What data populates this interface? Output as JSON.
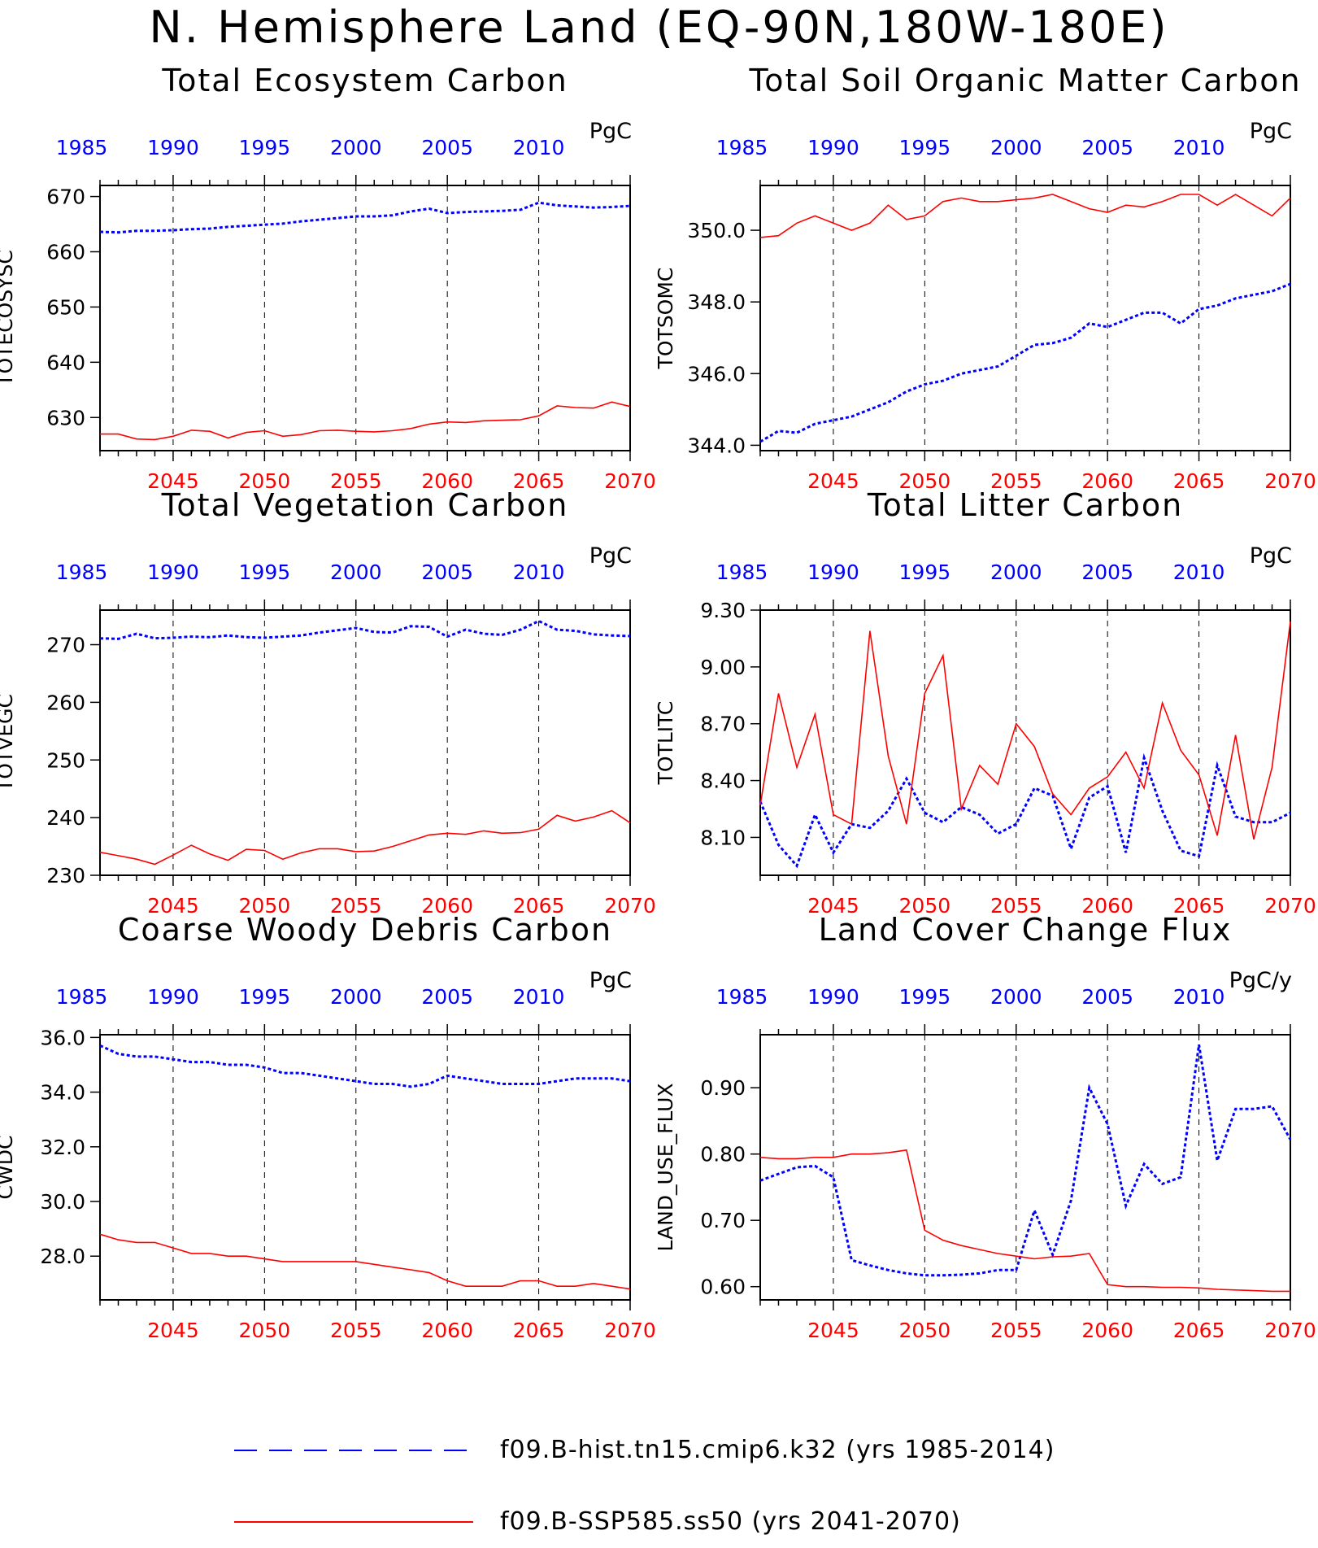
{
  "title": "N. Hemisphere Land (EQ-90N,180W-180E)",
  "colors": {
    "hist": "#0000ff",
    "ssp": "#ff0000",
    "axis": "#000000"
  },
  "legend": [
    {
      "label": "f09.B-hist.tn15.cmip6.k32 (yrs 1985-2014)",
      "color": "#0000ff",
      "style": "dashed"
    },
    {
      "label": "f09.B-SSP585.ss50 (yrs 2041-2070)",
      "color": "#ff0000",
      "style": "solid"
    }
  ],
  "chart_data": [
    {
      "type": "line",
      "title": "Total Ecosystem Carbon",
      "ylabel": "TOTECOSYSC",
      "units": "PgC",
      "ylim": [
        624,
        672
      ],
      "yticks": [
        630,
        640,
        650,
        660,
        670
      ],
      "ytick_format": 0,
      "top_xticks": [
        1985,
        1990,
        1995,
        2000,
        2005,
        2010
      ],
      "bottom_xticks": [
        2045,
        2050,
        2055,
        2060,
        2065,
        2070
      ],
      "series": [
        {
          "name": "f09.B-hist.tn15.cmip6.k32",
          "x_start": 1985,
          "values": [
            663.6,
            663.5,
            663.8,
            663.8,
            663.9,
            664.1,
            664.2,
            664.5,
            664.7,
            664.9,
            665.1,
            665.5,
            665.8,
            666.1,
            666.4,
            666.4,
            666.6,
            667.3,
            667.8,
            667.0,
            667.2,
            667.3,
            667.4,
            667.6,
            668.9,
            668.4,
            668.2,
            668.0,
            668.1,
            668.3
          ]
        },
        {
          "name": "f09.B-SSP585.ss50",
          "x_start": 2041,
          "values": [
            627.0,
            627.0,
            626.1,
            626.0,
            626.6,
            627.7,
            627.5,
            626.3,
            627.3,
            627.6,
            626.6,
            626.9,
            627.6,
            627.7,
            627.5,
            627.4,
            627.6,
            628.0,
            628.8,
            629.2,
            629.1,
            629.4,
            629.5,
            629.6,
            630.3,
            632.1,
            631.8,
            631.7,
            632.8,
            632.0
          ]
        }
      ]
    },
    {
      "type": "line",
      "title": "Total Soil Organic Matter Carbon",
      "ylabel": "TOTSOMC",
      "units": "PgC",
      "ylim": [
        343.85,
        351.25
      ],
      "yticks": [
        344.0,
        346.0,
        348.0,
        350.0
      ],
      "ytick_format": 1,
      "top_xticks": [
        1985,
        1990,
        1995,
        2000,
        2005,
        2010
      ],
      "bottom_xticks": [
        2045,
        2050,
        2055,
        2060,
        2065,
        2070
      ],
      "series": [
        {
          "name": "f09.B-hist.tn15.cmip6.k32",
          "x_start": 1985,
          "values": [
            344.1,
            344.4,
            344.35,
            344.6,
            344.7,
            344.8,
            345.0,
            345.2,
            345.5,
            345.7,
            345.8,
            346.0,
            346.1,
            346.2,
            346.5,
            346.8,
            346.85,
            347.0,
            347.4,
            347.3,
            347.5,
            347.7,
            347.7,
            347.4,
            347.8,
            347.9,
            348.1,
            348.2,
            348.3,
            348.5
          ]
        },
        {
          "name": "f09.B-SSP585.ss50",
          "x_start": 2041,
          "values": [
            349.8,
            349.85,
            350.2,
            350.4,
            350.2,
            350.0,
            350.2,
            350.7,
            350.3,
            350.4,
            350.8,
            350.9,
            350.8,
            350.8,
            350.85,
            350.9,
            351.0,
            350.8,
            350.6,
            350.5,
            350.7,
            350.65,
            350.8,
            351.0,
            351.0,
            350.7,
            351.0,
            350.7,
            350.4,
            350.9
          ]
        }
      ]
    },
    {
      "type": "line",
      "title": "Total Vegetation Carbon",
      "ylabel": "TOTVEGC",
      "units": "PgC",
      "ylim": [
        230,
        276
      ],
      "yticks": [
        230,
        240,
        250,
        260,
        270
      ],
      "ytick_format": 0,
      "top_xticks": [
        1985,
        1990,
        1995,
        2000,
        2005,
        2010
      ],
      "bottom_xticks": [
        2045,
        2050,
        2055,
        2060,
        2065,
        2070
      ],
      "series": [
        {
          "name": "f09.B-hist.tn15.cmip6.k32",
          "x_start": 1985,
          "values": [
            271.1,
            271.0,
            271.9,
            271.1,
            271.2,
            271.4,
            271.3,
            271.6,
            271.3,
            271.2,
            271.4,
            271.6,
            272.1,
            272.5,
            272.9,
            272.2,
            272.1,
            273.2,
            273.1,
            271.4,
            272.6,
            271.9,
            271.7,
            272.6,
            274.1,
            272.6,
            272.4,
            271.8,
            271.6,
            271.5
          ]
        },
        {
          "name": "f09.B-SSP585.ss50",
          "x_start": 2041,
          "values": [
            234.0,
            233.4,
            232.8,
            231.9,
            233.5,
            235.2,
            233.7,
            232.6,
            234.5,
            234.3,
            232.8,
            233.9,
            234.6,
            234.6,
            234.1,
            234.2,
            235.0,
            236.0,
            237.0,
            237.3,
            237.1,
            237.7,
            237.3,
            237.4,
            238.0,
            240.4,
            239.4,
            240.1,
            241.2,
            239.1
          ]
        }
      ]
    },
    {
      "type": "line",
      "title": "Total Litter Carbon",
      "ylabel": "TOTLITC",
      "units": "PgC",
      "ylim": [
        7.9,
        9.3
      ],
      "yticks": [
        8.1,
        8.4,
        8.7,
        9.0,
        9.3
      ],
      "ytick_format": 2,
      "top_xticks": [
        1985,
        1990,
        1995,
        2000,
        2005,
        2010
      ],
      "bottom_xticks": [
        2045,
        2050,
        2055,
        2060,
        2065,
        2070
      ],
      "series": [
        {
          "name": "f09.B-hist.tn15.cmip6.k32",
          "x_start": 1985,
          "values": [
            8.29,
            8.06,
            7.95,
            8.22,
            8.02,
            8.17,
            8.15,
            8.24,
            8.41,
            8.23,
            8.18,
            8.26,
            8.22,
            8.12,
            8.17,
            8.36,
            8.32,
            8.04,
            8.31,
            8.37,
            8.02,
            8.52,
            8.24,
            8.03,
            8.0,
            8.48,
            8.21,
            8.18,
            8.18,
            8.23
          ]
        },
        {
          "name": "f09.B-SSP585.ss50",
          "x_start": 2041,
          "values": [
            8.27,
            8.86,
            8.47,
            8.75,
            8.22,
            8.17,
            9.19,
            8.53,
            8.17,
            8.86,
            9.06,
            8.25,
            8.48,
            8.38,
            8.7,
            8.58,
            8.33,
            8.22,
            8.36,
            8.42,
            8.55,
            8.36,
            8.81,
            8.56,
            8.43,
            8.11,
            8.64,
            8.09,
            8.47,
            9.24
          ]
        }
      ]
    },
    {
      "type": "line",
      "title": "Coarse Woody Debris Carbon",
      "ylabel": "CWDC",
      "units": "PgC",
      "ylim": [
        26.4,
        36.1
      ],
      "yticks": [
        28.0,
        30.0,
        32.0,
        34.0,
        36.0
      ],
      "ytick_format": 1,
      "top_xticks": [
        1985,
        1990,
        1995,
        2000,
        2005,
        2010
      ],
      "bottom_xticks": [
        2045,
        2050,
        2055,
        2060,
        2065,
        2070
      ],
      "series": [
        {
          "name": "f09.B-hist.tn15.cmip6.k32",
          "x_start": 1985,
          "values": [
            35.7,
            35.4,
            35.3,
            35.3,
            35.2,
            35.1,
            35.1,
            35.0,
            35.0,
            34.9,
            34.7,
            34.7,
            34.6,
            34.5,
            34.4,
            34.3,
            34.3,
            34.2,
            34.3,
            34.6,
            34.5,
            34.4,
            34.3,
            34.3,
            34.3,
            34.4,
            34.5,
            34.5,
            34.5,
            34.4
          ]
        },
        {
          "name": "f09.B-SSP585.ss50",
          "x_start": 2041,
          "values": [
            28.8,
            28.6,
            28.5,
            28.5,
            28.3,
            28.1,
            28.1,
            28.0,
            28.0,
            27.9,
            27.8,
            27.8,
            27.8,
            27.8,
            27.8,
            27.7,
            27.6,
            27.5,
            27.4,
            27.1,
            26.9,
            26.9,
            26.9,
            27.1,
            27.1,
            26.9,
            26.9,
            27.0,
            26.9,
            26.8
          ]
        }
      ]
    },
    {
      "type": "line",
      "title": "Land Cover Change Flux",
      "ylabel": "LAND_USE_FLUX",
      "units": "PgC/y",
      "ylim": [
        0.58,
        0.98
      ],
      "yticks": [
        0.6,
        0.7,
        0.8,
        0.9
      ],
      "ytick_format": 2,
      "top_xticks": [
        1985,
        1990,
        1995,
        2000,
        2005,
        2010
      ],
      "bottom_xticks": [
        2045,
        2050,
        2055,
        2060,
        2065,
        2070
      ],
      "series": [
        {
          "name": "f09.B-hist.tn15.cmip6.k32",
          "x_start": 1985,
          "values": [
            0.76,
            0.77,
            0.78,
            0.782,
            0.765,
            0.64,
            0.632,
            0.625,
            0.62,
            0.617,
            0.617,
            0.618,
            0.62,
            0.625,
            0.625,
            0.715,
            0.648,
            0.73,
            0.9,
            0.845,
            0.722,
            0.785,
            0.755,
            0.765,
            0.965,
            0.79,
            0.868,
            0.868,
            0.872,
            0.822
          ]
        },
        {
          "name": "f09.B-SSP585.ss50",
          "x_start": 2041,
          "values": [
            0.795,
            0.793,
            0.793,
            0.795,
            0.795,
            0.8,
            0.8,
            0.802,
            0.806,
            0.685,
            0.67,
            0.662,
            0.656,
            0.65,
            0.646,
            0.642,
            0.645,
            0.646,
            0.65,
            0.603,
            0.6,
            0.6,
            0.599,
            0.599,
            0.598,
            0.596,
            0.595,
            0.594,
            0.593,
            0.593
          ]
        }
      ]
    }
  ]
}
